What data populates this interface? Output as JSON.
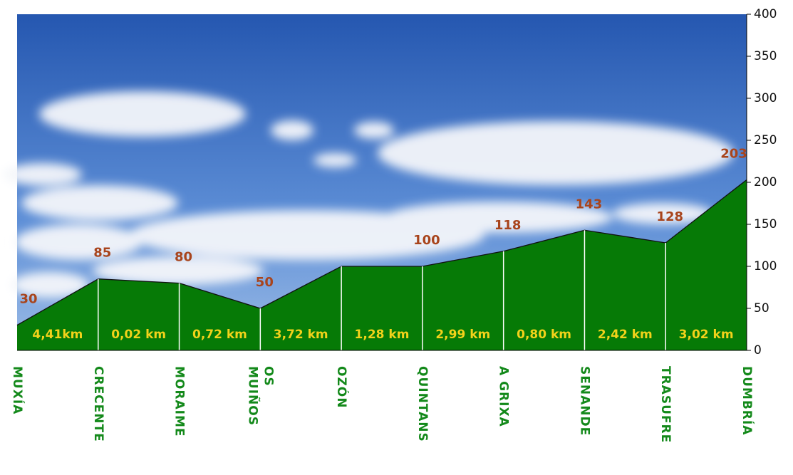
{
  "chart_data": {
    "type": "area",
    "categories": [
      "MUXÍA",
      "CRECENTE",
      "MORAIME",
      "OS\nMUIÑOS",
      "OZÓN",
      "QUINTANS",
      "A GRIXA",
      "SENANDE",
      "TRASUFRE",
      "DUMBRÍA"
    ],
    "values": [
      30,
      85,
      80,
      50,
      100,
      100,
      118,
      143,
      128,
      203
    ],
    "value_labels": [
      "30",
      "85",
      "80",
      "50",
      null,
      "100",
      "118",
      "143",
      "128",
      "203"
    ],
    "segment_labels": [
      "4,41km",
      "0,02 km",
      "0,72 km",
      "3,72 km",
      "1,28 km",
      "2,99 km",
      "0,80 km",
      "2,42 km",
      "3,02 km"
    ],
    "color": "#067a06",
    "ylim": [
      0,
      400
    ],
    "yticks": [
      0,
      50,
      100,
      150,
      200,
      250,
      300,
      350,
      400
    ]
  }
}
